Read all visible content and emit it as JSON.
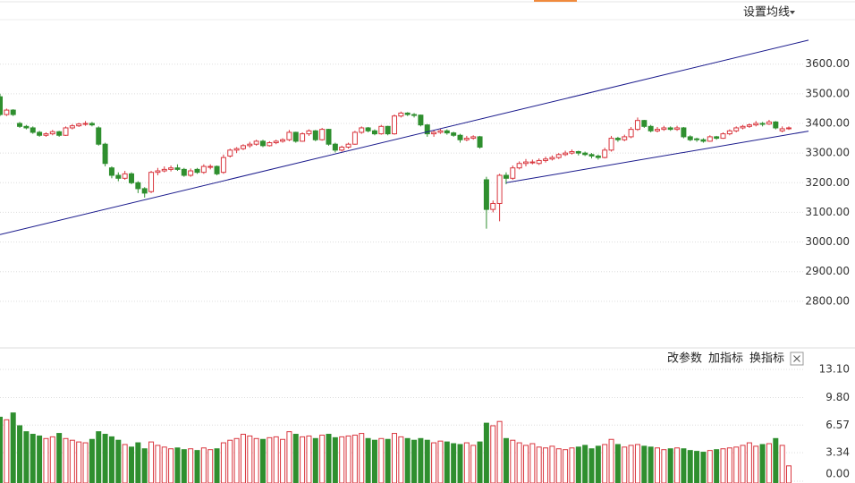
{
  "chart_data": {
    "type": "candlestick",
    "ma_button": "设置均线",
    "toolbar": [
      "改参数",
      "加指标",
      "换指标"
    ],
    "colors": {
      "up": "#d9363e",
      "down": "#2f8f2f",
      "trend": "#1a1a8c"
    },
    "grid": true,
    "candles": [
      [
        3490,
        3500,
        3425,
        3430
      ],
      [
        3430,
        3450,
        3425,
        3445
      ],
      [
        3445,
        3448,
        3425,
        3430
      ],
      [
        3400,
        3405,
        3385,
        3390
      ],
      [
        3390,
        3395,
        3380,
        3385
      ],
      [
        3385,
        3390,
        3365,
        3370
      ],
      [
        3370,
        3375,
        3355,
        3360
      ],
      [
        3360,
        3370,
        3355,
        3365
      ],
      [
        3365,
        3378,
        3360,
        3372
      ],
      [
        3372,
        3375,
        3355,
        3360
      ],
      [
        3360,
        3390,
        3358,
        3385
      ],
      [
        3385,
        3398,
        3380,
        3392
      ],
      [
        3392,
        3402,
        3388,
        3398
      ],
      [
        3398,
        3408,
        3392,
        3400
      ],
      [
        3400,
        3405,
        3390,
        3395
      ],
      [
        3385,
        3390,
        3325,
        3330
      ],
      [
        3330,
        3335,
        3255,
        3265
      ],
      [
        3250,
        3255,
        3215,
        3225
      ],
      [
        3225,
        3235,
        3205,
        3215
      ],
      [
        3215,
        3240,
        3210,
        3230
      ],
      [
        3230,
        3235,
        3195,
        3200
      ],
      [
        3200,
        3205,
        3165,
        3180
      ],
      [
        3180,
        3185,
        3150,
        3165
      ],
      [
        3170,
        3240,
        3165,
        3235
      ],
      [
        3235,
        3250,
        3225,
        3240
      ],
      [
        3240,
        3255,
        3235,
        3245
      ],
      [
        3245,
        3258,
        3238,
        3250
      ],
      [
        3250,
        3262,
        3240,
        3245
      ],
      [
        3245,
        3250,
        3220,
        3225
      ],
      [
        3225,
        3248,
        3220,
        3240
      ],
      [
        3245,
        3250,
        3230,
        3235
      ],
      [
        3235,
        3262,
        3230,
        3255
      ],
      [
        3255,
        3262,
        3245,
        3255
      ],
      [
        3255,
        3258,
        3225,
        3230
      ],
      [
        3235,
        3295,
        3230,
        3285
      ],
      [
        3290,
        3315,
        3285,
        3310
      ],
      [
        3310,
        3320,
        3300,
        3315
      ],
      [
        3315,
        3330,
        3310,
        3325
      ],
      [
        3325,
        3338,
        3318,
        3330
      ],
      [
        3330,
        3345,
        3325,
        3340
      ],
      [
        3340,
        3345,
        3320,
        3325
      ],
      [
        3325,
        3340,
        3322,
        3335
      ],
      [
        3335,
        3345,
        3330,
        3340
      ],
      [
        3340,
        3350,
        3335,
        3345
      ],
      [
        3345,
        3378,
        3340,
        3370
      ],
      [
        3370,
        3372,
        3335,
        3340
      ],
      [
        3340,
        3370,
        3338,
        3365
      ],
      [
        3365,
        3380,
        3358,
        3375
      ],
      [
        3375,
        3378,
        3340,
        3345
      ],
      [
        3345,
        3385,
        3342,
        3380
      ],
      [
        3380,
        3382,
        3325,
        3330
      ],
      [
        3330,
        3335,
        3302,
        3310
      ],
      [
        3310,
        3325,
        3305,
        3320
      ],
      [
        3320,
        3335,
        3315,
        3330
      ],
      [
        3330,
        3375,
        3328,
        3370
      ],
      [
        3370,
        3390,
        3365,
        3385
      ],
      [
        3385,
        3388,
        3370,
        3375
      ],
      [
        3375,
        3380,
        3360,
        3365
      ],
      [
        3365,
        3395,
        3362,
        3390
      ],
      [
        3390,
        3392,
        3360,
        3365
      ],
      [
        3365,
        3430,
        3362,
        3425
      ],
      [
        3425,
        3440,
        3420,
        3435
      ],
      [
        3435,
        3438,
        3425,
        3430
      ],
      [
        3430,
        3435,
        3420,
        3428
      ],
      [
        3428,
        3430,
        3390,
        3395
      ],
      [
        3395,
        3398,
        3355,
        3365
      ],
      [
        3365,
        3378,
        3355,
        3370
      ],
      [
        3370,
        3382,
        3365,
        3375
      ],
      [
        3375,
        3380,
        3362,
        3368
      ],
      [
        3368,
        3372,
        3355,
        3360
      ],
      [
        3360,
        3365,
        3335,
        3345
      ],
      [
        3345,
        3358,
        3340,
        3350
      ],
      [
        3350,
        3360,
        3345,
        3355
      ],
      [
        3355,
        3358,
        3315,
        3320
      ],
      [
        3210,
        3220,
        3045,
        3110
      ],
      [
        3110,
        3140,
        3100,
        3130
      ],
      [
        3130,
        3230,
        3070,
        3225
      ],
      [
        3225,
        3235,
        3195,
        3215
      ],
      [
        3215,
        3258,
        3210,
        3250
      ],
      [
        3250,
        3272,
        3245,
        3265
      ],
      [
        3265,
        3280,
        3255,
        3270
      ],
      [
        3270,
        3278,
        3262,
        3270
      ],
      [
        3265,
        3282,
        3260,
        3275
      ],
      [
        3275,
        3288,
        3268,
        3280
      ],
      [
        3280,
        3292,
        3275,
        3285
      ],
      [
        3285,
        3300,
        3280,
        3295
      ],
      [
        3295,
        3308,
        3290,
        3300
      ],
      [
        3300,
        3312,
        3295,
        3305
      ],
      [
        3305,
        3308,
        3292,
        3300
      ],
      [
        3300,
        3305,
        3290,
        3295
      ],
      [
        3295,
        3300,
        3282,
        3290
      ],
      [
        3290,
        3295,
        3278,
        3285
      ],
      [
        3285,
        3318,
        3282,
        3310
      ],
      [
        3310,
        3358,
        3305,
        3350
      ],
      [
        3350,
        3355,
        3338,
        3345
      ],
      [
        3345,
        3362,
        3340,
        3355
      ],
      [
        3355,
        3388,
        3350,
        3380
      ],
      [
        3380,
        3420,
        3375,
        3410
      ],
      [
        3410,
        3412,
        3385,
        3390
      ],
      [
        3390,
        3395,
        3370,
        3375
      ],
      [
        3375,
        3388,
        3370,
        3380
      ],
      [
        3380,
        3392,
        3375,
        3385
      ],
      [
        3385,
        3390,
        3375,
        3380
      ],
      [
        3380,
        3392,
        3375,
        3385
      ],
      [
        3385,
        3388,
        3350,
        3355
      ],
      [
        3355,
        3360,
        3340,
        3345
      ],
      [
        3348,
        3352,
        3338,
        3345
      ],
      [
        3345,
        3350,
        3335,
        3340
      ],
      [
        3340,
        3360,
        3338,
        3355
      ],
      [
        3355,
        3358,
        3345,
        3350
      ],
      [
        3350,
        3370,
        3348,
        3365
      ],
      [
        3365,
        3380,
        3360,
        3375
      ],
      [
        3375,
        3390,
        3370,
        3385
      ],
      [
        3385,
        3395,
        3380,
        3390
      ],
      [
        3390,
        3400,
        3385,
        3395
      ],
      [
        3395,
        3408,
        3390,
        3400
      ],
      [
        3400,
        3405,
        3390,
        3398
      ],
      [
        3398,
        3412,
        3395,
        3405
      ],
      [
        3405,
        3408,
        3380,
        3385
      ],
      [
        3375,
        3390,
        3370,
        3382
      ],
      [
        3382,
        3390,
        3378,
        3385
      ]
    ],
    "volume": [
      7.5,
      7.2,
      8.0,
      6.5,
      5.8,
      5.5,
      5.3,
      5.0,
      5.2,
      5.6,
      5.0,
      4.8,
      4.6,
      4.5,
      4.9,
      5.8,
      5.5,
      5.2,
      4.8,
      4.3,
      4.0,
      4.5,
      3.8,
      4.6,
      4.2,
      4.0,
      3.8,
      3.9,
      3.7,
      3.8,
      3.6,
      3.9,
      3.7,
      3.8,
      4.5,
      4.8,
      5.0,
      5.5,
      5.3,
      5.0,
      4.9,
      5.1,
      5.2,
      4.9,
      5.8,
      5.5,
      5.2,
      5.3,
      5.0,
      5.4,
      5.5,
      5.1,
      5.2,
      5.3,
      5.4,
      5.6,
      5.0,
      4.8,
      5.0,
      4.9,
      5.6,
      5.2,
      5.0,
      4.8,
      5.0,
      4.8,
      4.5,
      4.7,
      4.6,
      4.4,
      4.3,
      4.5,
      4.2,
      4.6,
      6.8,
      6.5,
      7.0,
      5.0,
      4.8,
      4.5,
      4.2,
      4.4,
      4.0,
      3.9,
      4.1,
      3.8,
      3.7,
      3.9,
      4.0,
      4.2,
      3.8,
      4.1,
      4.3,
      4.9,
      4.3,
      4.0,
      4.2,
      4.3,
      4.1,
      4.0,
      3.9,
      3.7,
      3.8,
      3.9,
      3.8,
      3.6,
      3.5,
      3.4,
      3.6,
      3.7,
      3.8,
      3.9,
      4.0,
      4.2,
      4.5,
      4.1,
      4.3,
      4.4,
      5.0,
      4.2,
      1.8
    ],
    "trend_lines": [
      {
        "start": [
          0,
          3025
        ],
        "end": [
          123,
          3681
        ]
      },
      {
        "start": [
          77,
          3200
        ],
        "end": [
          123,
          3374
        ]
      }
    ],
    "ylim": [
      2700,
      3750
    ],
    "yticks": [
      {
        "value": 2800,
        "label": "2800.00"
      },
      {
        "value": 2900,
        "label": "2900.00"
      },
      {
        "value": 3000,
        "label": "3000.00"
      },
      {
        "value": 3100,
        "label": "3100.00"
      },
      {
        "value": 3200,
        "label": "3200.00"
      },
      {
        "value": 3300,
        "label": "3300.00"
      },
      {
        "value": 3400,
        "label": "3400.00"
      },
      {
        "value": 3500,
        "label": "3500.00"
      },
      {
        "value": 3600,
        "label": "3600.00"
      }
    ],
    "vol_ylim": [
      0,
      15.3
    ],
    "vol_yticks": [
      {
        "value": 0,
        "label": "0.00"
      },
      {
        "value": 3.34,
        "label": "3.34"
      },
      {
        "value": 6.57,
        "label": "6.57"
      },
      {
        "value": 9.8,
        "label": "9.80"
      },
      {
        "value": 13.1,
        "label": "13.10"
      }
    ]
  }
}
